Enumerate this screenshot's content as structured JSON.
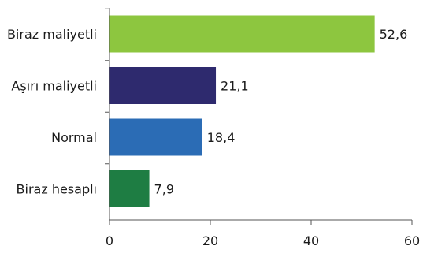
{
  "chart_data": {
    "type": "bar",
    "orientation": "horizontal",
    "categories": [
      "Biraz maliyetli",
      "Aşırı maliyetli",
      "Normal",
      "Biraz hesaplı"
    ],
    "values": [
      52.6,
      21.1,
      18.4,
      7.9
    ],
    "value_labels": [
      "52,6",
      "21,1",
      "18,4",
      "7,9"
    ],
    "bar_colors": [
      "#8dc63f",
      "#2e2a6e",
      "#2b6cb5",
      "#1e7d43"
    ],
    "xlim": [
      0,
      60
    ],
    "xticks": [
      0,
      20,
      40,
      60
    ],
    "xtick_labels": [
      "0",
      "20",
      "40",
      "60"
    ],
    "title": "",
    "xlabel": "",
    "ylabel": "",
    "grid": false,
    "legend": "none"
  }
}
